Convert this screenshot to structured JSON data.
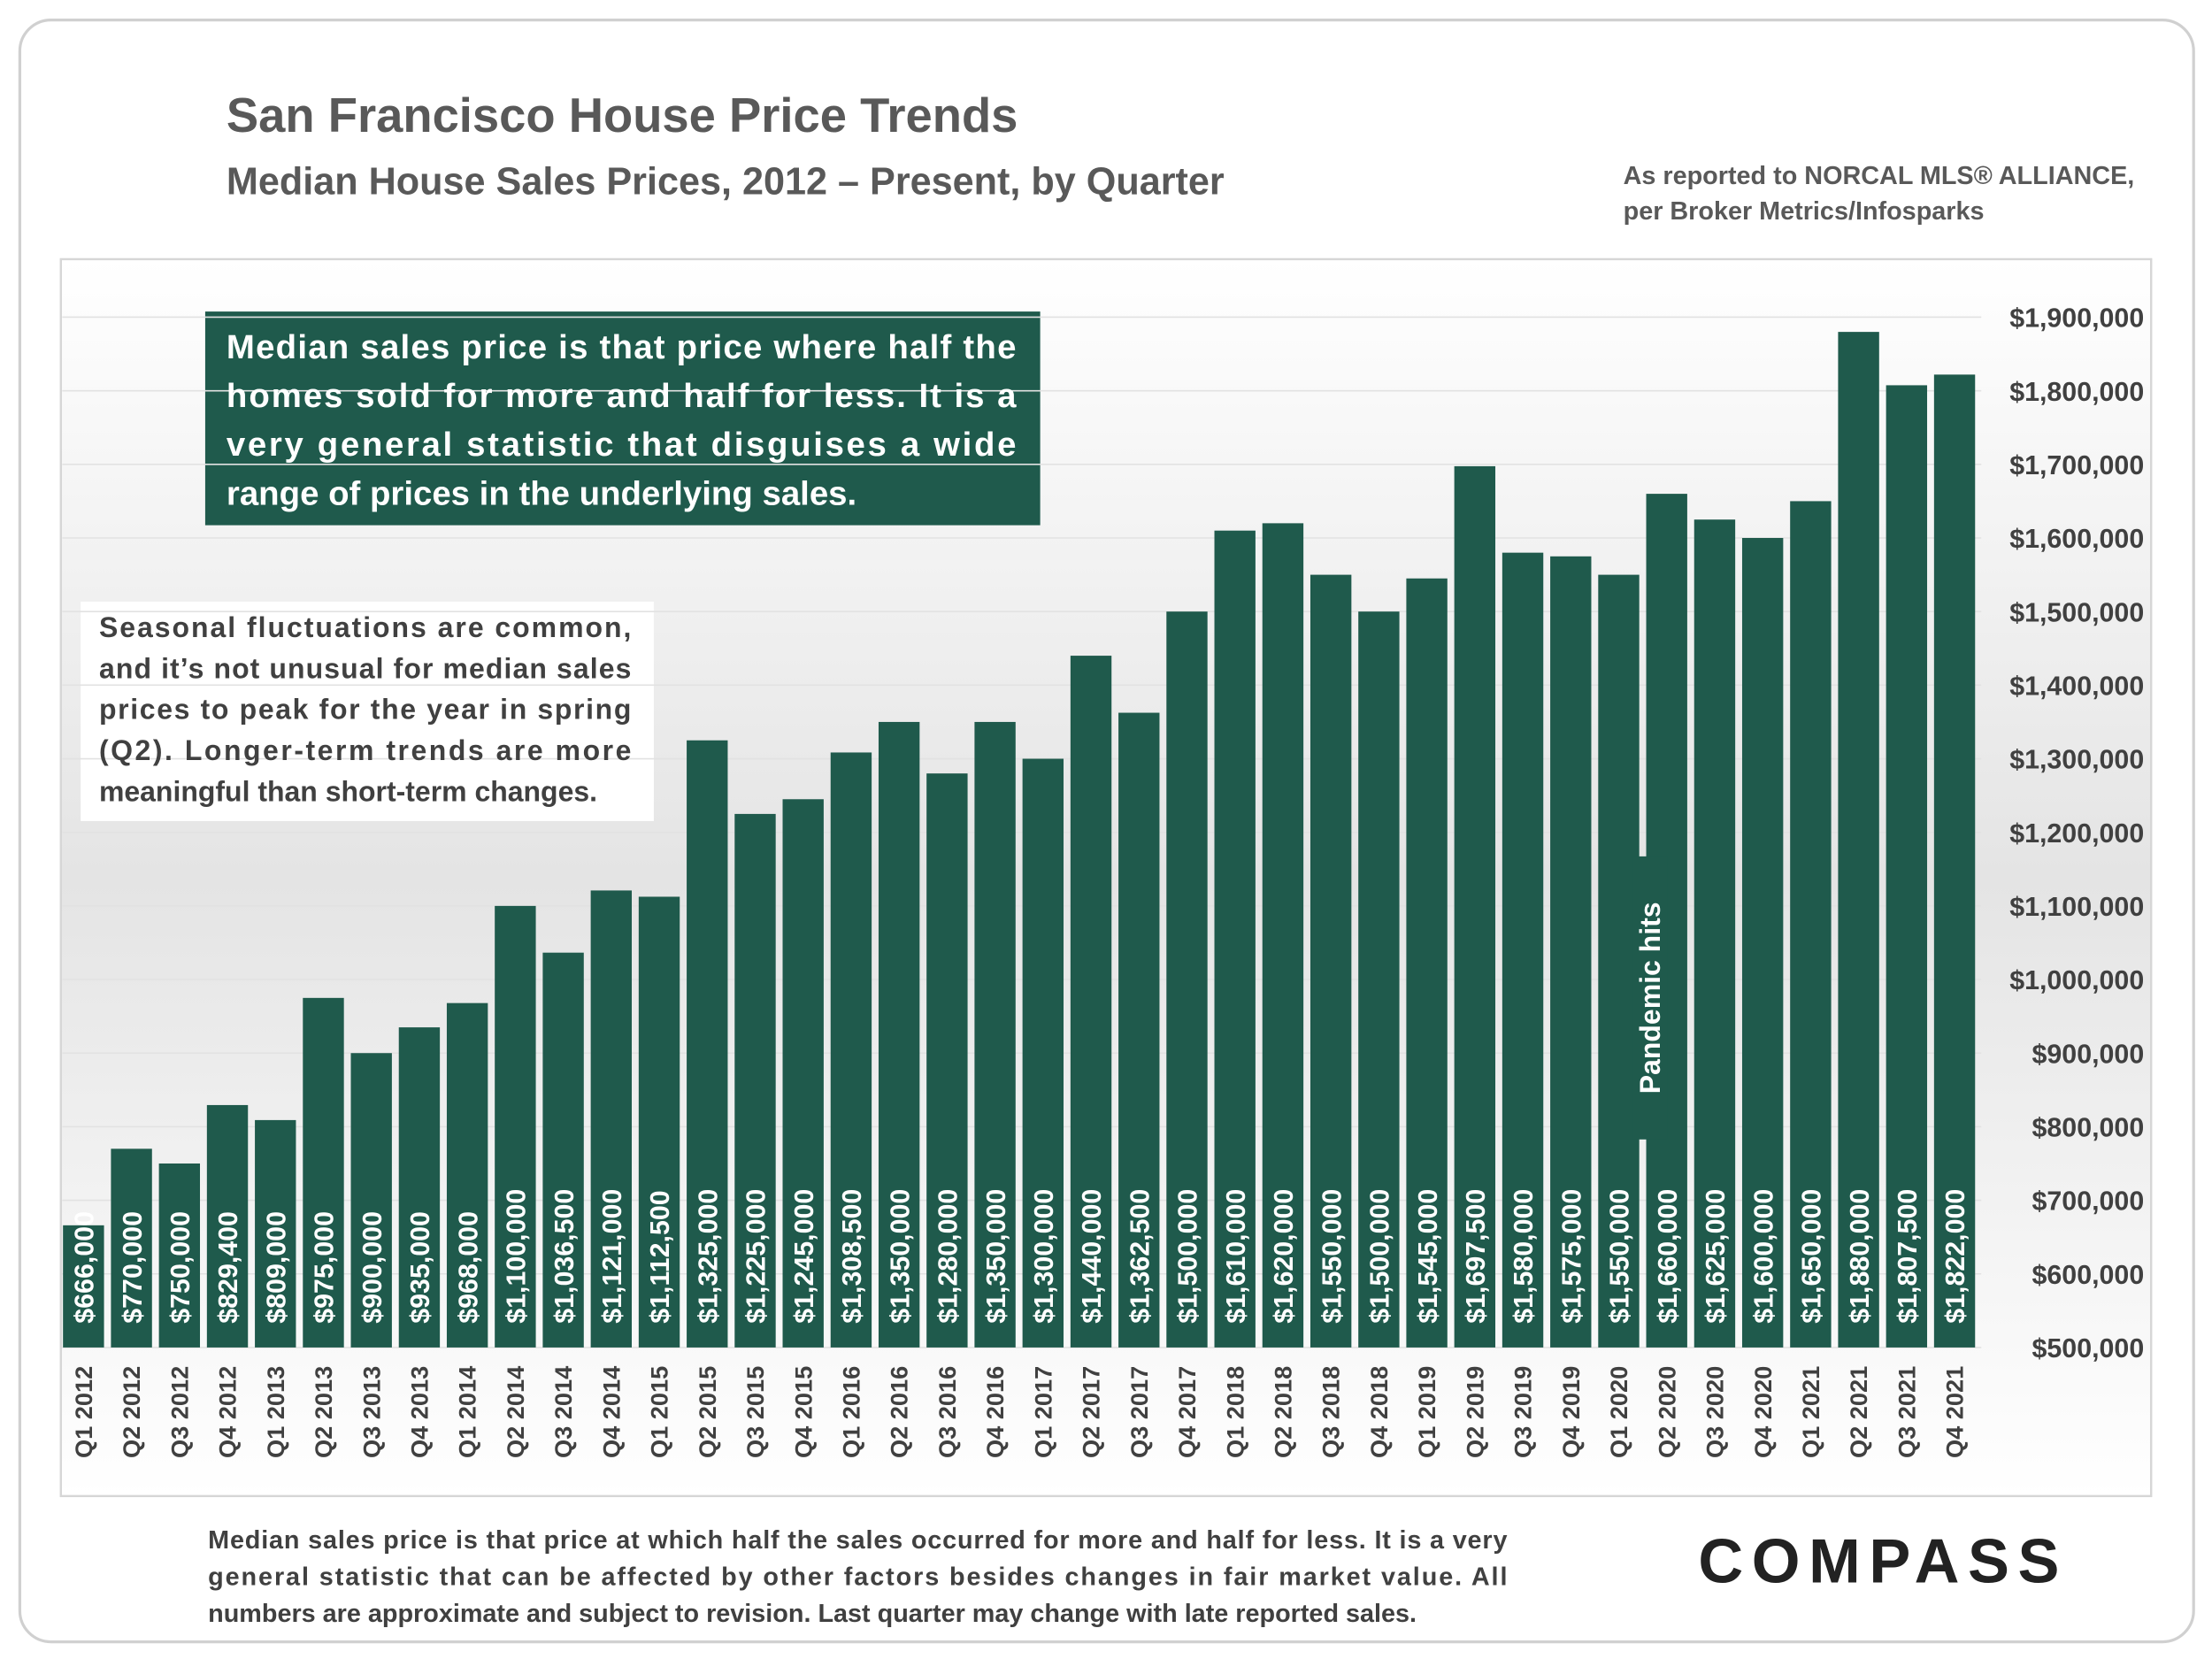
{
  "chart_data": {
    "type": "bar",
    "title": "San Francisco House Price Trends",
    "subtitle": "Median House Sales Prices, 2012 – Present, by Quarter",
    "source": [
      "As reported to NORCAL MLS® ALLIANCE,",
      "per Broker Metrics/Infosparks"
    ],
    "callout": [
      "Median sales price is that price where half the",
      "homes sold for more and half for less. It is a",
      "very general statistic that disguises a wide",
      "range of prices in the underlying sales."
    ],
    "note": [
      "Seasonal fluctuations are common,",
      "and it’s not unusual for median sales",
      "prices to peak for the year in spring",
      "(Q2). Longer-term trends are more",
      "meaningful than short-term changes."
    ],
    "annotation": "Pandemic hits",
    "footnote": [
      "Median sales price is that price at which half the sales occurred for more and half for less. It is a very",
      "general statistic that can be affected by other factors besides changes in fair market value. All",
      "numbers are approximate and subject to revision. Last quarter may change with late reported sales."
    ],
    "logo": "COMPASS",
    "categories": [
      "Q1 2012",
      "Q2 2012",
      "Q3 2012",
      "Q4 2012",
      "Q1 2013",
      "Q2 2013",
      "Q3 2013",
      "Q4 2013",
      "Q1 2014",
      "Q2 2014",
      "Q3 2014",
      "Q4 2014",
      "Q1 2015",
      "Q2 2015",
      "Q3 2015",
      "Q4 2015",
      "Q1 2016",
      "Q2 2016",
      "Q3 2016",
      "Q4 2016",
      "Q1 2017",
      "Q2 2017",
      "Q3 2017",
      "Q4 2017",
      "Q1 2018",
      "Q2 2018",
      "Q3 2018",
      "Q4 2018",
      "Q1 2019",
      "Q2 2019",
      "Q3 2019",
      "Q4 2019",
      "Q1 2020",
      "Q2 2020",
      "Q3 2020",
      "Q4 2020",
      "Q1 2021",
      "Q2 2021",
      "Q3 2021",
      "Q4 2021"
    ],
    "values": [
      666000,
      770000,
      750000,
      829400,
      809000,
      975000,
      900000,
      935000,
      968000,
      1100000,
      1036500,
      1121000,
      1112500,
      1325000,
      1225000,
      1245000,
      1308500,
      1350000,
      1280000,
      1350000,
      1300000,
      1440000,
      1362500,
      1500000,
      1610000,
      1620000,
      1550000,
      1500000,
      1545000,
      1697500,
      1580000,
      1575000,
      1550000,
      1660000,
      1625000,
      1600000,
      1650000,
      1880000,
      1807500,
      1822000
    ],
    "value_labels": [
      "$666,000",
      "$770,000",
      "$750,000",
      "$829,400",
      "$809,000",
      "$975,000",
      "$900,000",
      "$935,000",
      "$968,000",
      "$1,100,000",
      "$1,036,500",
      "$1,121,000",
      "$1,112,500",
      "$1,325,000",
      "$1,225,000",
      "$1,245,000",
      "$1,308,500",
      "$1,350,000",
      "$1,280,000",
      "$1,350,000",
      "$1,300,000",
      "$1,440,000",
      "$1,362,500",
      "$1,500,000",
      "$1,610,000",
      "$1,620,000",
      "$1,550,000",
      "$1,500,000",
      "$1,545,000",
      "$1,697,500",
      "$1,580,000",
      "$1,575,000",
      "$1,550,000",
      "$1,660,000",
      "$1,625,000",
      "$1,600,000",
      "$1,650,000",
      "$1,880,000",
      "$1,807,500",
      "$1,822,000"
    ],
    "color": "#1f5a4c",
    "ylim": [
      500000,
      1900000
    ],
    "yticks": [
      {
        "value": 500000,
        "label": "$500,000"
      },
      {
        "value": 600000,
        "label": "$600,000"
      },
      {
        "value": 700000,
        "label": "$700,000"
      },
      {
        "value": 800000,
        "label": "$800,000"
      },
      {
        "value": 900000,
        "label": "$900,000"
      },
      {
        "value": 1000000,
        "label": "$1,000,000"
      },
      {
        "value": 1100000,
        "label": "$1,100,000"
      },
      {
        "value": 1200000,
        "label": "$1,200,000"
      },
      {
        "value": 1300000,
        "label": "$1,300,000"
      },
      {
        "value": 1400000,
        "label": "$1,400,000"
      },
      {
        "value": 1500000,
        "label": "$1,500,000"
      },
      {
        "value": 1600000,
        "label": "$1,600,000"
      },
      {
        "value": 1700000,
        "label": "$1,700,000"
      },
      {
        "value": 1800000,
        "label": "$1,800,000"
      },
      {
        "value": 1900000,
        "label": "$1,900,000"
      }
    ],
    "grid": true
  }
}
